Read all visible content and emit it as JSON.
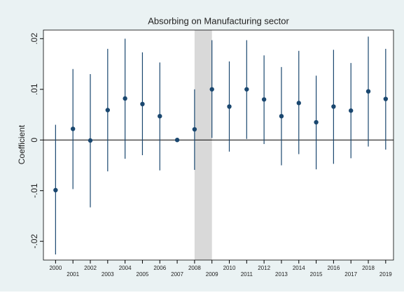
{
  "chart_data": {
    "type": "coefplot",
    "title": "Absorbing on Manufacturing sector",
    "y_label": "Coefficient",
    "x": [
      2000,
      2001,
      2002,
      2003,
      2004,
      2005,
      2006,
      2007,
      2008,
      2009,
      2010,
      2011,
      2012,
      2013,
      2014,
      2015,
      2016,
      2017,
      2018,
      2019
    ],
    "values": [
      -0.0099,
      0.0022,
      -0.0001,
      0.0059,
      0.0082,
      0.0071,
      0.0047,
      0,
      0.0021,
      0.01,
      0.0066,
      0.01,
      0.008,
      0.0047,
      0.0073,
      0.0035,
      0.0066,
      0.0058,
      0.0096,
      0.0081
    ],
    "ci_lower": [
      -0.0226,
      -0.0097,
      -0.0133,
      -0.0062,
      -0.0037,
      -0.003,
      -0.006,
      null,
      -0.0059,
      0.0004,
      -0.0023,
      0.0002,
      -0.0008,
      -0.005,
      -0.0028,
      -0.0058,
      -0.0047,
      -0.0036,
      -0.0013,
      -0.0019
    ],
    "ci_upper": [
      0.003,
      0.014,
      0.013,
      0.018,
      0.02,
      0.0173,
      0.0153,
      null,
      0.01,
      0.0197,
      0.0155,
      0.0197,
      0.0167,
      0.0144,
      0.0176,
      0.0127,
      0.0178,
      0.0152,
      0.0204,
      0.018
    ],
    "color": "#1a476f",
    "xlim": [
      1999.3,
      2019.45
    ],
    "ylim": [
      -0.0237,
      0.0217
    ],
    "yticks": [
      {
        "value": -0.02,
        "label": "-.02"
      },
      {
        "value": -0.01,
        "label": "-.01"
      },
      0,
      {
        "value": 0.01,
        "label": ".01"
      },
      {
        "value": 0.02,
        "label": ".02"
      }
    ],
    "hline": 0,
    "shade_x": [
      2008,
      2009
    ],
    "shade_color": "#d9d9d9"
  }
}
